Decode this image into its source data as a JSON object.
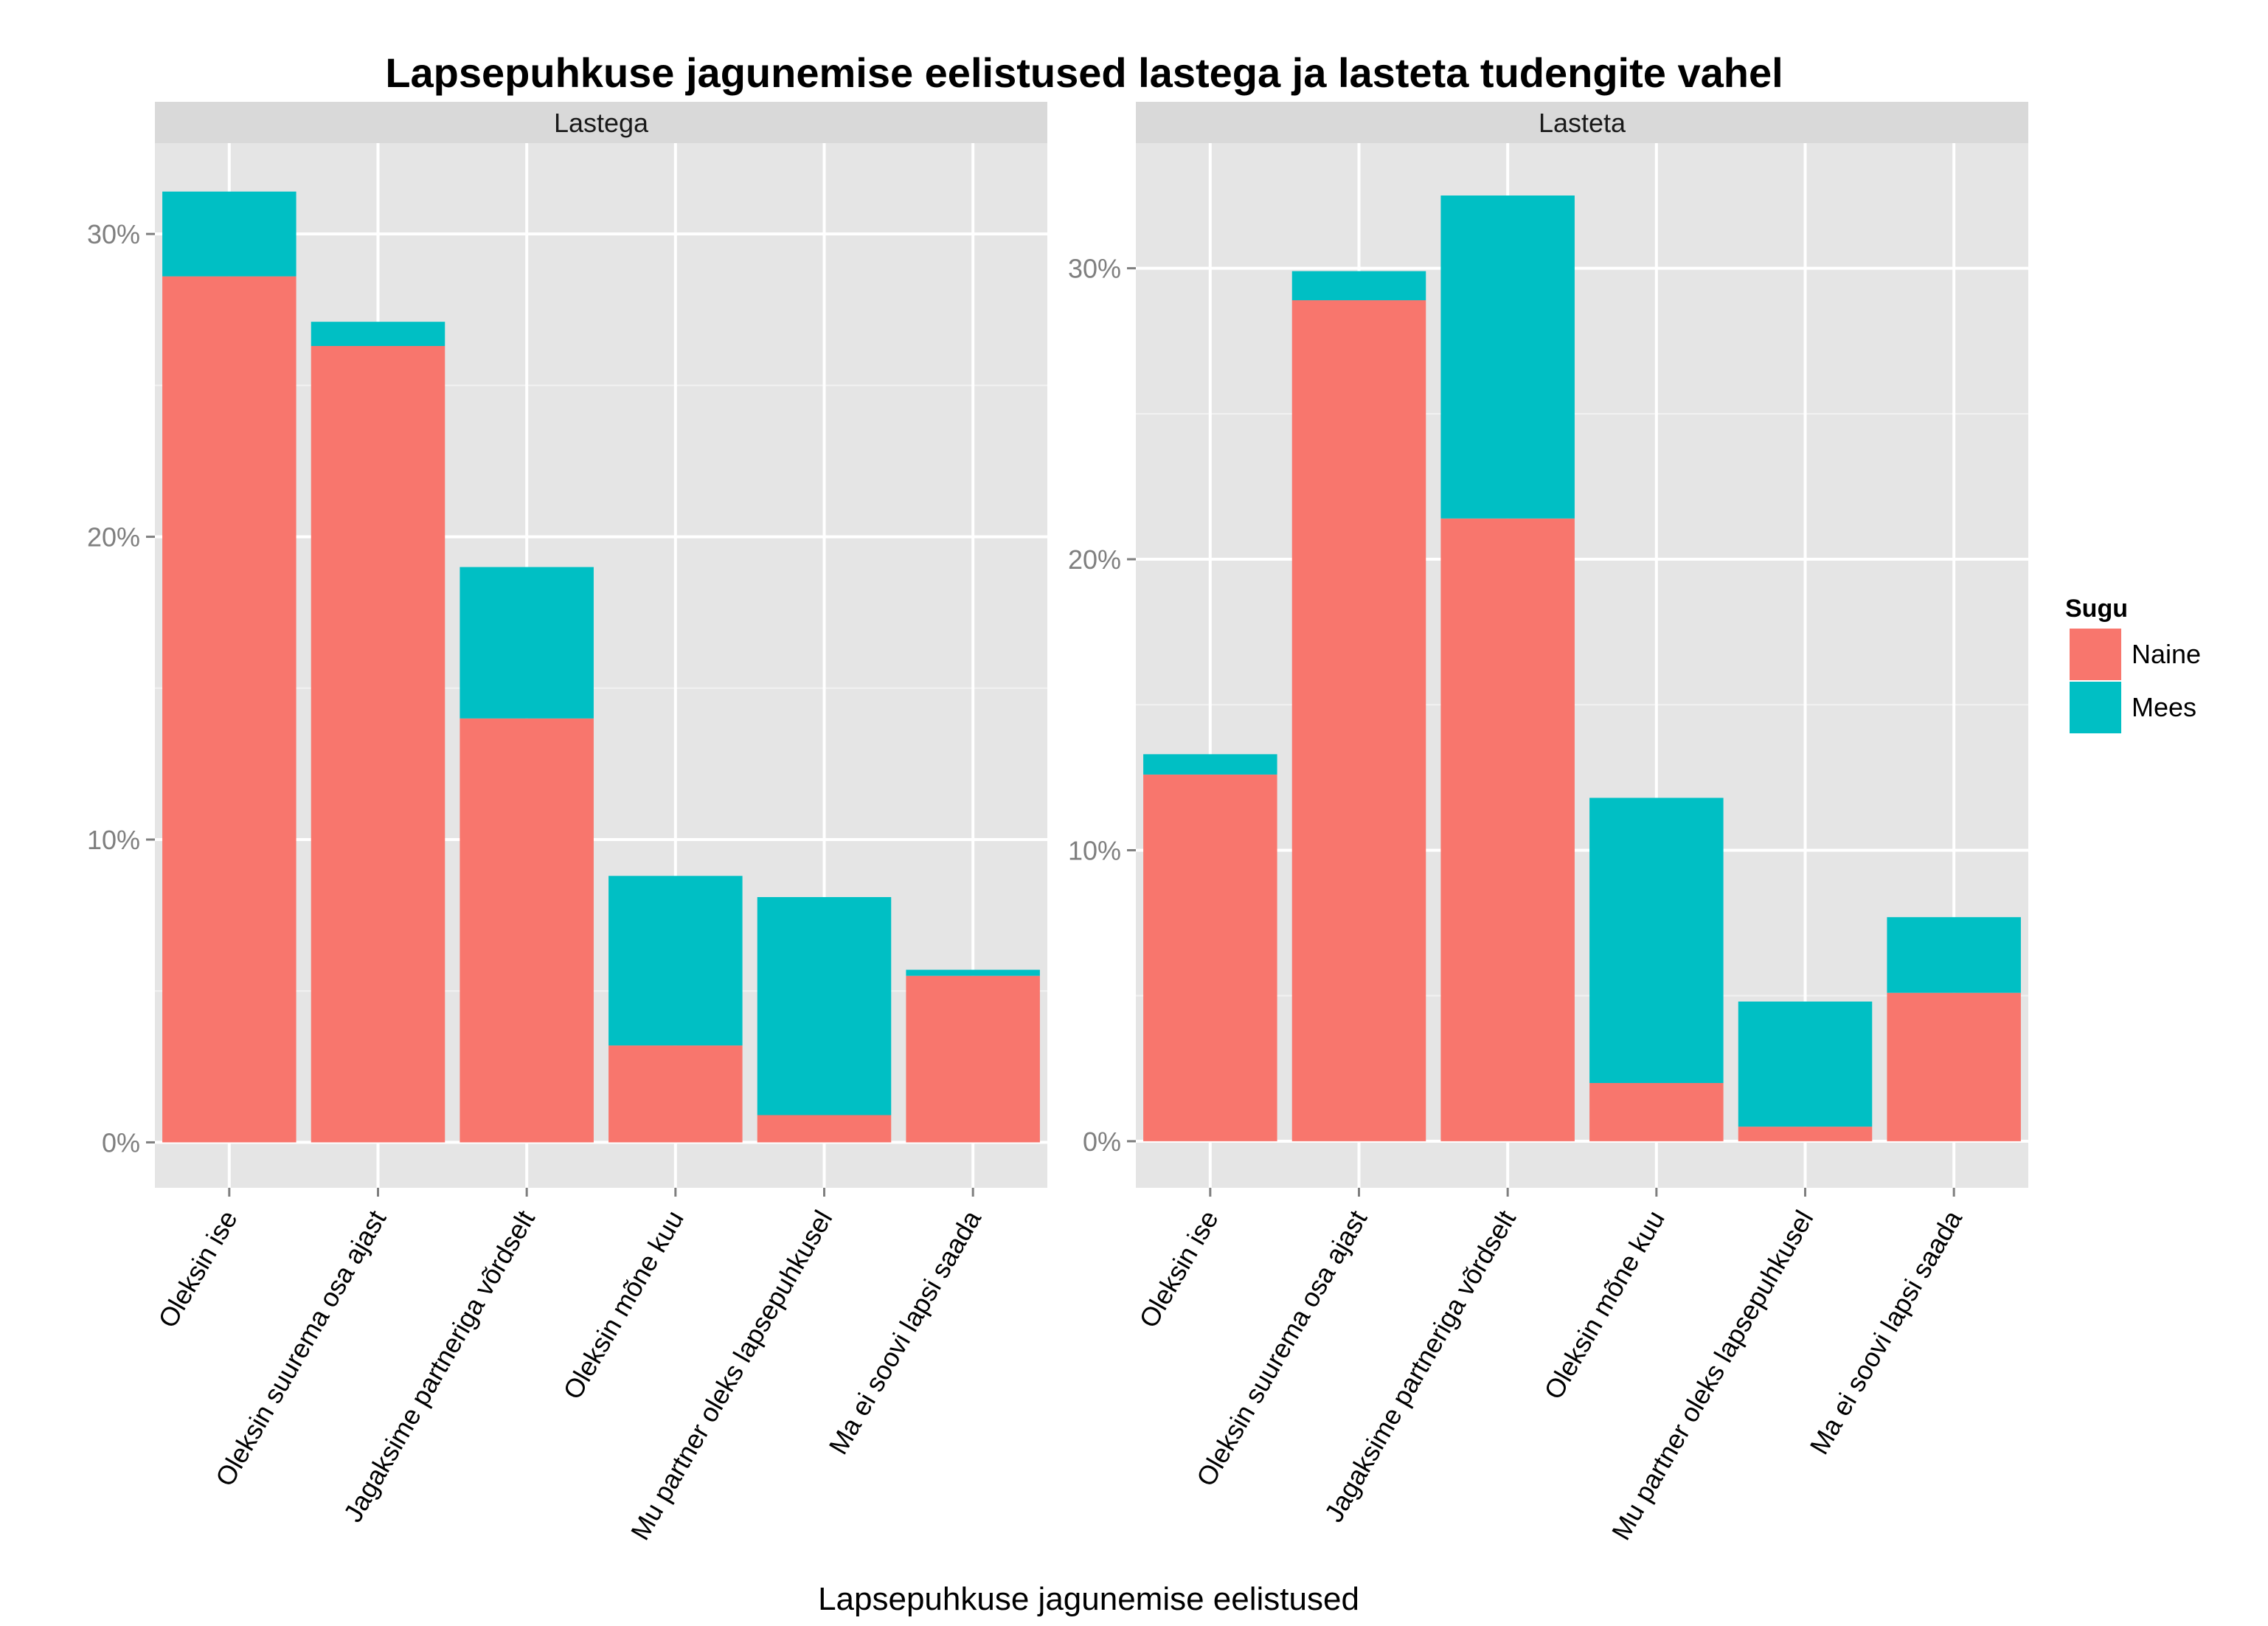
{
  "chart_data": {
    "type": "bar",
    "stacked": true,
    "title": "Lapsepuhkuse jagunemise eelistused lastega ja lasteta tudengite vahel",
    "xlabel": "Lapsepuhkuse jagunemise eelistused",
    "ylabel": "",
    "y_format": "percent",
    "categories": [
      "Oleksin ise",
      "Oleksin suurema osa ajast",
      "Jagaksime partneriga võrdselt",
      "Oleksin mõne kuu",
      "Mu partner oleks lapsepuhkusel",
      "Ma ei soovi lapsi saada"
    ],
    "legend": {
      "title": "Sugu",
      "position": "right",
      "entries": [
        {
          "name": "Naine",
          "color": "#F8766D"
        },
        {
          "name": "Mees",
          "color": "#00BFC4"
        }
      ]
    },
    "grid": true,
    "panels": [
      {
        "strip": "Lastega",
        "ylim": [
          -1.5,
          33
        ],
        "yticks": [
          0,
          10,
          20,
          30
        ],
        "ytick_labels": [
          "0%",
          "10%",
          "20%",
          "30%"
        ],
        "series": [
          {
            "name": "Naine",
            "values": [
              28.6,
              26.3,
              14.0,
              3.2,
              0.9,
              5.5
            ]
          },
          {
            "name": "Mees",
            "values": [
              2.8,
              0.8,
              5.0,
              5.6,
              7.2,
              0.2
            ]
          }
        ]
      },
      {
        "strip": "Lasteta",
        "ylim": [
          -1.6,
          34.3
        ],
        "yticks": [
          0,
          10,
          20,
          30
        ],
        "ytick_labels": [
          "0%",
          "10%",
          "20%",
          "30%"
        ],
        "series": [
          {
            "name": "Naine",
            "values": [
              12.6,
              28.9,
              21.4,
              2.0,
              0.5,
              5.1
            ]
          },
          {
            "name": "Mees",
            "values": [
              0.7,
              1.0,
              11.1,
              9.8,
              4.3,
              2.6
            ]
          }
        ]
      }
    ]
  }
}
